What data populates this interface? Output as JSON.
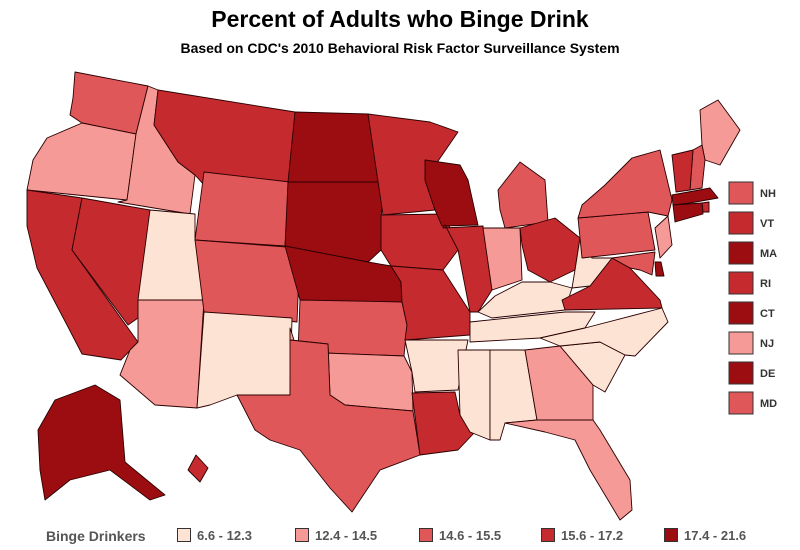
{
  "title": "Percent of Adults who Binge Drink",
  "subtitle": "Based on CDC's 2010 Behavioral Risk Factor Surveillance System",
  "legend": {
    "title": "Binge Drinkers",
    "bins": [
      {
        "label": "6.6 - 12.3",
        "color": "#fde3d4"
      },
      {
        "label": "12.4 - 14.5",
        "color": "#f59a96"
      },
      {
        "label": "14.6 - 15.5",
        "color": "#e0575a"
      },
      {
        "label": "15.6 - 17.2",
        "color": "#c42a2e"
      },
      {
        "label": "17.4 - 21.6",
        "color": "#9c0d12"
      }
    ]
  },
  "state_bins": {
    "WA": 2,
    "OR": 1,
    "CA": 3,
    "NV": 3,
    "ID": 1,
    "MT": 3,
    "WY": 2,
    "UT": 0,
    "AZ": 1,
    "CO": 2,
    "NM": 0,
    "ND": 4,
    "SD": 4,
    "NE": 4,
    "KS": 2,
    "OK": 1,
    "TX": 2,
    "MN": 3,
    "IA": 3,
    "MO": 3,
    "AR": 0,
    "LA": 3,
    "WI": 4,
    "IL": 3,
    "MI": 2,
    "IN": 1,
    "OH": 3,
    "KY": 0,
    "TN": 0,
    "MS": 0,
    "AL": 0,
    "GA": 1,
    "FL": 1,
    "SC": 0,
    "NC": 0,
    "VA": 3,
    "WV": 0,
    "PA": 2,
    "NY": 2,
    "ME": 1,
    "AK": 4,
    "HI": 3
  },
  "northeast_boxes": [
    {
      "abbr": "NH",
      "bin": 2
    },
    {
      "abbr": "VT",
      "bin": 3
    },
    {
      "abbr": "MA",
      "bin": 4
    },
    {
      "abbr": "RI",
      "bin": 3
    },
    {
      "abbr": "CT",
      "bin": 4
    },
    {
      "abbr": "NJ",
      "bin": 1
    },
    {
      "abbr": "DE",
      "bin": 4
    },
    {
      "abbr": "MD",
      "bin": 2
    }
  ]
}
